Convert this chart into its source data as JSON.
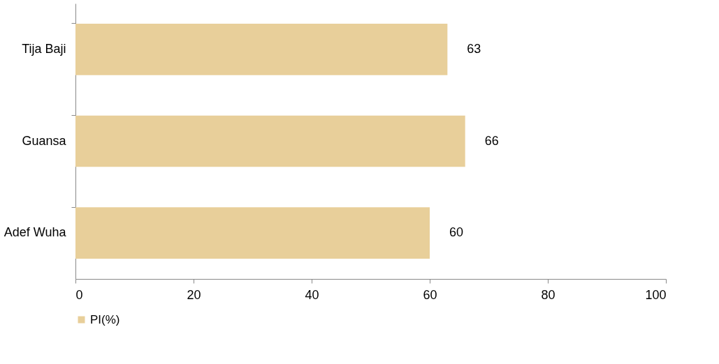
{
  "chart_data": {
    "type": "bar",
    "orientation": "horizontal",
    "categories": [
      "Tija Baji",
      "Guansa",
      "Adef Wuha"
    ],
    "series": [
      {
        "name": "PI(%)",
        "color": "#e8cf9a",
        "values": [
          63,
          66,
          60
        ]
      }
    ],
    "xlim": [
      0,
      100
    ],
    "xticks": [
      0,
      20,
      40,
      60,
      80,
      100
    ],
    "data_labels": true,
    "grid": false,
    "legend": "bottom"
  }
}
